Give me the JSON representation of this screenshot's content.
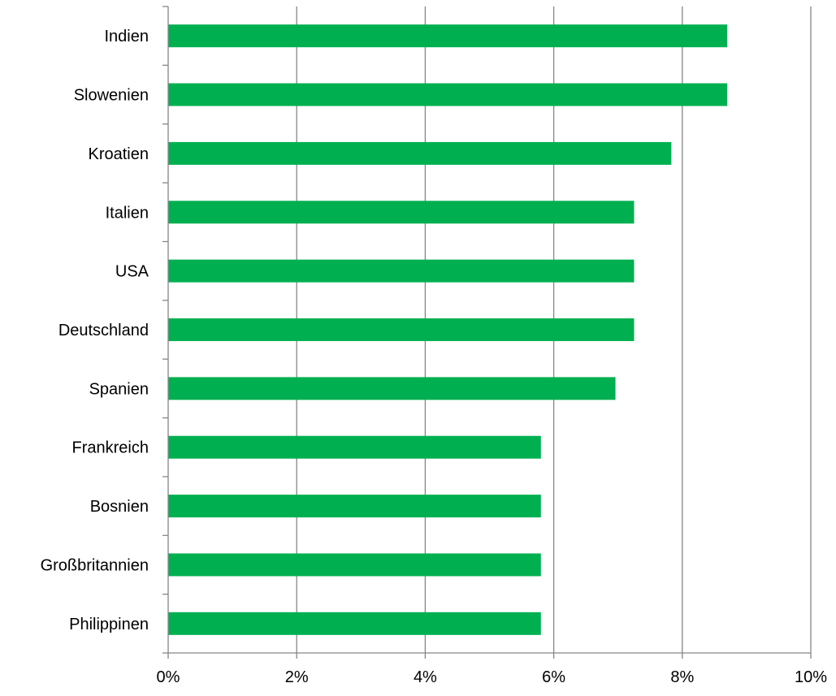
{
  "chart_data": {
    "type": "bar",
    "orientation": "horizontal",
    "categories": [
      "Indien",
      "Slowenien",
      "Kroatien",
      "Italien",
      "USA",
      "Deutschland",
      "Spanien",
      "Frankreich",
      "Bosnien",
      "Großbritannien",
      "Philippinen"
    ],
    "values": [
      8.7,
      8.7,
      7.83,
      7.25,
      7.25,
      7.25,
      6.96,
      5.8,
      5.8,
      5.8,
      5.8
    ],
    "x_ticks": [
      0,
      2,
      4,
      6,
      8,
      10
    ],
    "x_tick_labels": [
      "0%",
      "2%",
      "4%",
      "6%",
      "8%",
      "10%"
    ],
    "xlim": [
      0,
      10
    ],
    "value_unit": "%",
    "title": "",
    "xlabel": "",
    "ylabel": "",
    "grid": "vertical",
    "legend": "none",
    "colors": {
      "bar": "#00b050",
      "grid": "#868686",
      "axis": "#868686",
      "text": "#000000"
    }
  }
}
